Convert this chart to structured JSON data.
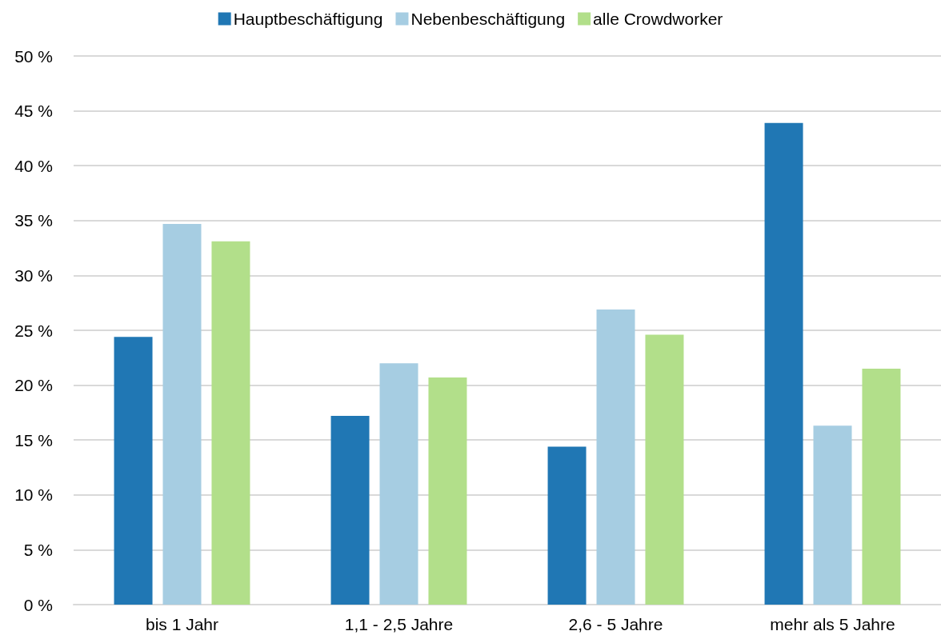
{
  "chart_data": {
    "type": "bar",
    "categories": [
      "bis 1 Jahr",
      "1,1 - 2,5 Jahre",
      "2,6 - 5 Jahre",
      "mehr als 5 Jahre"
    ],
    "series": [
      {
        "name": "Hauptbeschäftigung",
        "color": "#2077b4",
        "values": [
          24.4,
          17.2,
          14.4,
          43.9
        ]
      },
      {
        "name": "Nebenbeschäftigung",
        "color": "#a6cde2",
        "values": [
          34.7,
          22.0,
          26.9,
          16.3
        ]
      },
      {
        "name": "alle Crowdworker",
        "color": "#b2df8a",
        "values": [
          33.1,
          20.7,
          24.6,
          21.5
        ]
      }
    ],
    "ylim": [
      0,
      50
    ],
    "yticks": [
      {
        "value": 0,
        "label": "0 %"
      },
      {
        "value": 5,
        "label": "5 %"
      },
      {
        "value": 10,
        "label": "10 %"
      },
      {
        "value": 15,
        "label": "15 %"
      },
      {
        "value": 20,
        "label": "20 %"
      },
      {
        "value": 25,
        "label": "25 %"
      },
      {
        "value": 30,
        "label": "30 %"
      },
      {
        "value": 35,
        "label": "35 %"
      },
      {
        "value": 40,
        "label": "40 %"
      },
      {
        "value": 45,
        "label": "45 %"
      },
      {
        "value": 50,
        "label": "50 %"
      }
    ],
    "grid": "y",
    "legend": "top"
  }
}
